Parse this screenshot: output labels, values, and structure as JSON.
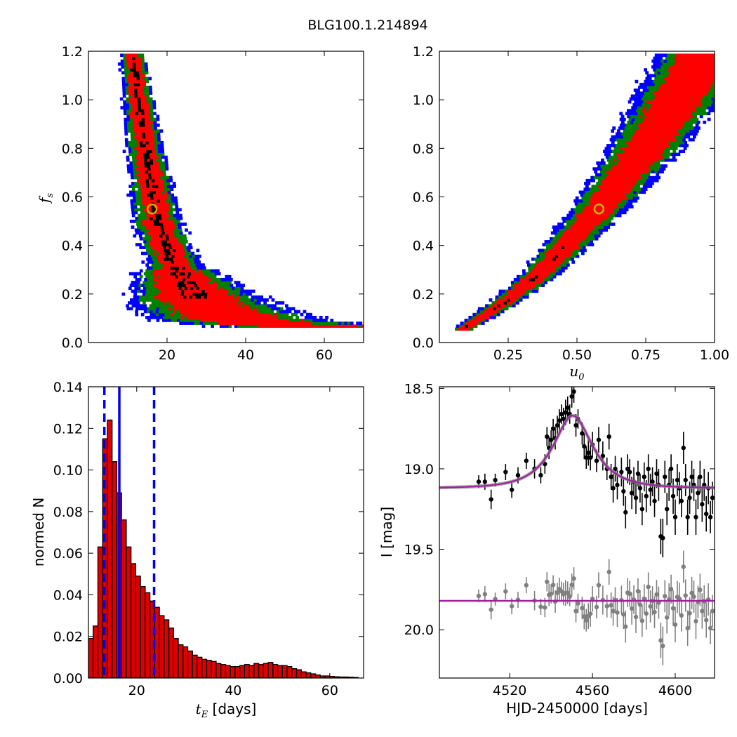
{
  "figure": {
    "title": "BLG100.1.214894"
  },
  "panels": {
    "tl": {
      "ylabel_main": "f",
      "ylabel_sub": "s",
      "xlabel": "",
      "xlim": [
        0,
        70
      ],
      "ylim": [
        0,
        1.2
      ],
      "xticks": [
        {
          "v": 20,
          "label": "20"
        },
        {
          "v": 40,
          "label": "40"
        },
        {
          "v": 60,
          "label": "60"
        }
      ],
      "yticks": [
        {
          "v": 0,
          "label": "0.0"
        },
        {
          "v": 0.2,
          "label": "0.2"
        },
        {
          "v": 0.4,
          "label": "0.4"
        },
        {
          "v": 0.6,
          "label": "0.6"
        },
        {
          "v": 0.8,
          "label": "0.8"
        },
        {
          "v": 1.0,
          "label": "1.0"
        },
        {
          "v": 1.2,
          "label": "1.2"
        }
      ]
    },
    "tr": {
      "xlabel_main": "u",
      "xlabel_sub": "0",
      "ylabel": "",
      "xlim": [
        0,
        1.0
      ],
      "ylim": [
        0,
        1.2
      ],
      "xticks": [
        {
          "v": 0.25,
          "label": "0.25"
        },
        {
          "v": 0.5,
          "label": "0.50"
        },
        {
          "v": 0.75,
          "label": "0.75"
        },
        {
          "v": 1.0,
          "label": "1.00"
        }
      ],
      "yticks": [
        {
          "v": 0,
          "label": "0.0"
        },
        {
          "v": 0.2,
          "label": "0.2"
        },
        {
          "v": 0.4,
          "label": "0.4"
        },
        {
          "v": 0.6,
          "label": "0.6"
        },
        {
          "v": 0.8,
          "label": "0.8"
        },
        {
          "v": 1.0,
          "label": "1.0"
        },
        {
          "v": 1.2,
          "label": "1.2"
        }
      ]
    },
    "bl": {
      "xlabel_main": "t",
      "xlabel_sub": "E",
      "xlabel_rest": " [days]",
      "ylabel": "normed N",
      "xlim": [
        10,
        67
      ],
      "ylim": [
        0,
        0.14
      ],
      "xticks": [
        {
          "v": 20,
          "label": "20"
        },
        {
          "v": 40,
          "label": "40"
        },
        {
          "v": 60,
          "label": "60"
        }
      ],
      "yticks": [
        {
          "v": 0,
          "label": "0.00"
        },
        {
          "v": 0.02,
          "label": "0.02"
        },
        {
          "v": 0.04,
          "label": "0.04"
        },
        {
          "v": 0.06,
          "label": "0.06"
        },
        {
          "v": 0.08,
          "label": "0.08"
        },
        {
          "v": 0.1,
          "label": "0.10"
        },
        {
          "v": 0.12,
          "label": "0.12"
        },
        {
          "v": 0.14,
          "label": "0.14"
        }
      ]
    },
    "br": {
      "xlabel": "HJD-2450000 [days]",
      "ylabel": "I [mag]",
      "xlim": [
        4486,
        4619
      ],
      "ylim": [
        20.3,
        18.49
      ],
      "xticks": [
        {
          "v": 4520,
          "label": "4520"
        },
        {
          "v": 4560,
          "label": "4560"
        },
        {
          "v": 4600,
          "label": "4600"
        }
      ],
      "yticks": [
        {
          "v": 18.5,
          "label": "18.5"
        },
        {
          "v": 19.0,
          "label": "19.0"
        },
        {
          "v": 19.5,
          "label": "19.5"
        },
        {
          "v": 20.0,
          "label": "20.0"
        }
      ]
    }
  },
  "colors": {
    "sigma1": "#ff0000",
    "sigma2": "#008000",
    "sigma3": "#0000ff",
    "core": "#000000",
    "best": "#c8b400",
    "model": "#a020a0",
    "residual": "#808080",
    "hist_fill": "#dd0000",
    "vline": "#0000ee"
  },
  "chart_data": [
    {
      "id": "tl",
      "type": "heatmap",
      "description_series": [
        "1-sigma",
        "2-sigma",
        "3-sigma"
      ],
      "x_param": "t_E",
      "y_param": "f_s",
      "ridge": [
        [
          10.8,
          1.18
        ],
        [
          11.6,
          1.1
        ],
        [
          12.4,
          1.0
        ],
        [
          13.2,
          0.9
        ],
        [
          14.0,
          0.8
        ],
        [
          15.0,
          0.7
        ],
        [
          16.1,
          0.6
        ],
        [
          17.3,
          0.5
        ],
        [
          18.8,
          0.42
        ],
        [
          20.5,
          0.35
        ],
        [
          22.6,
          0.28
        ],
        [
          25.0,
          0.22
        ],
        [
          28.0,
          0.17
        ],
        [
          31.5,
          0.13
        ],
        [
          35.5,
          0.1
        ],
        [
          40.0,
          0.085
        ],
        [
          45.0,
          0.075
        ],
        [
          51.0,
          0.065
        ],
        [
          58.0,
          0.06
        ],
        [
          66.0,
          0.055
        ]
      ],
      "best_fit": {
        "x": 16.2,
        "y": 0.55
      },
      "xlim": [
        0,
        70
      ],
      "ylim": [
        0,
        1.2
      ]
    },
    {
      "id": "tr",
      "type": "heatmap",
      "x_param": "u_0",
      "y_param": "f_s",
      "ridge": [
        [
          0.08,
          0.05
        ],
        [
          0.15,
          0.1
        ],
        [
          0.22,
          0.15
        ],
        [
          0.3,
          0.22
        ],
        [
          0.38,
          0.3
        ],
        [
          0.46,
          0.4
        ],
        [
          0.54,
          0.5
        ],
        [
          0.6,
          0.58
        ],
        [
          0.68,
          0.7
        ],
        [
          0.76,
          0.82
        ],
        [
          0.84,
          0.96
        ],
        [
          0.92,
          1.1
        ],
        [
          0.97,
          1.18
        ]
      ],
      "best_fit": {
        "x": 0.58,
        "y": 0.55
      },
      "xlim": [
        0,
        1.0
      ],
      "ylim": [
        0,
        1.2
      ]
    },
    {
      "id": "bl",
      "type": "bar",
      "bin_width": 0.98,
      "bin_start": 10.0,
      "values": [
        0.019,
        0.025,
        0.063,
        0.115,
        0.124,
        0.104,
        0.089,
        0.076,
        0.063,
        0.055,
        0.049,
        0.044,
        0.041,
        0.037,
        0.034,
        0.03,
        0.028,
        0.024,
        0.019,
        0.016,
        0.015,
        0.013,
        0.011,
        0.01,
        0.009,
        0.0085,
        0.008,
        0.007,
        0.0065,
        0.006,
        0.0055,
        0.0055,
        0.006,
        0.0065,
        0.006,
        0.007,
        0.0065,
        0.007,
        0.0075,
        0.0065,
        0.006,
        0.006,
        0.0055,
        0.0045,
        0.004,
        0.003,
        0.0025,
        0.002,
        0.0015,
        0.001,
        0.001,
        0.0008,
        0.0006,
        0.0005,
        0.0005,
        0.0004,
        0.0003
      ],
      "vlines": [
        {
          "x": 13.3,
          "style": "dashed"
        },
        {
          "x": 16.4,
          "style": "solid"
        },
        {
          "x": 23.6,
          "style": "dashed"
        }
      ],
      "xlim": [
        10,
        67
      ],
      "ylim": [
        0,
        0.14
      ]
    },
    {
      "id": "br",
      "type": "scatter",
      "model": {
        "t0": 4550.5,
        "tE": 16.2,
        "u0": 0.58,
        "fs": 0.55,
        "base_mag": 19.12
      },
      "residual_offset": 19.82,
      "points_obs": [
        [
          4505,
          19.08,
          0.04
        ],
        [
          4508,
          19.08,
          0.05
        ],
        [
          4511,
          19.19,
          0.06
        ],
        [
          4513,
          19.07,
          0.04
        ],
        [
          4518,
          19.02,
          0.05
        ],
        [
          4521,
          19.13,
          0.05
        ],
        [
          4524,
          19.04,
          0.05
        ],
        [
          4528,
          18.95,
          0.05
        ],
        [
          4532,
          19.0,
          0.06
        ],
        [
          4535,
          19.04,
          0.05
        ],
        [
          4537,
          18.97,
          0.06
        ],
        [
          4538,
          18.8,
          0.06
        ],
        [
          4539,
          18.87,
          0.07
        ],
        [
          4540,
          18.82,
          0.06
        ],
        [
          4541,
          18.75,
          0.06
        ],
        [
          4542,
          18.81,
          0.07
        ],
        [
          4543,
          18.73,
          0.06
        ],
        [
          4544,
          18.7,
          0.07
        ],
        [
          4545,
          18.66,
          0.06
        ],
        [
          4546,
          18.69,
          0.07
        ],
        [
          4547,
          18.65,
          0.08
        ],
        [
          4548,
          18.62,
          0.07
        ],
        [
          4549,
          18.66,
          0.06
        ],
        [
          4550,
          18.55,
          0.07
        ],
        [
          4551,
          18.52,
          0.07
        ],
        [
          4552,
          18.73,
          0.07
        ],
        [
          4553,
          18.69,
          0.06
        ],
        [
          4555,
          18.78,
          0.07
        ],
        [
          4556,
          18.86,
          0.08
        ],
        [
          4557,
          18.93,
          0.07
        ],
        [
          4558,
          18.9,
          0.08
        ],
        [
          4559,
          18.93,
          0.08
        ],
        [
          4560,
          18.85,
          0.08
        ],
        [
          4562,
          18.95,
          0.07
        ],
        [
          4563,
          18.82,
          0.08
        ],
        [
          4565,
          18.92,
          0.09
        ],
        [
          4567,
          19.0,
          0.07
        ],
        [
          4568,
          18.8,
          0.08
        ],
        [
          4569,
          19.05,
          0.08
        ],
        [
          4570,
          19.12,
          0.09
        ],
        [
          4571,
          19.0,
          0.08
        ],
        [
          4572,
          19.1,
          0.09
        ],
        [
          4574,
          19.02,
          0.09
        ],
        [
          4575,
          19.14,
          0.09
        ],
        [
          4576,
          19.27,
          0.1
        ],
        [
          4577,
          19.0,
          0.09
        ],
        [
          4578,
          19.02,
          0.08
        ],
        [
          4579,
          19.15,
          0.1
        ],
        [
          4580,
          19.08,
          0.09
        ],
        [
          4581,
          19.18,
          0.1
        ],
        [
          4582,
          19.03,
          0.08
        ],
        [
          4583,
          19.12,
          0.09
        ],
        [
          4584,
          19.25,
          0.1
        ],
        [
          4585,
          19.05,
          0.09
        ],
        [
          4586,
          19.17,
          0.1
        ],
        [
          4587,
          19.0,
          0.09
        ],
        [
          4588,
          19.13,
          0.1
        ],
        [
          4589,
          19.08,
          0.09
        ],
        [
          4590,
          19.2,
          0.1
        ],
        [
          4591,
          19.03,
          0.09
        ],
        [
          4592,
          19.1,
          0.1
        ],
        [
          4593,
          19.42,
          0.11
        ],
        [
          4594,
          19.43,
          0.12
        ],
        [
          4595,
          19.05,
          0.1
        ],
        [
          4596,
          19.25,
          0.1
        ],
        [
          4597,
          19.1,
          0.1
        ],
        [
          4598,
          19.0,
          0.09
        ],
        [
          4599,
          19.17,
          0.11
        ],
        [
          4600,
          19.3,
          0.11
        ],
        [
          4601,
          19.07,
          0.1
        ],
        [
          4602,
          19.12,
          0.1
        ],
        [
          4603,
          19.2,
          0.1
        ],
        [
          4604,
          18.87,
          0.1
        ],
        [
          4605,
          19.07,
          0.1
        ],
        [
          4606,
          19.3,
          0.11
        ],
        [
          4607,
          19.18,
          0.1
        ],
        [
          4608,
          19.05,
          0.1
        ],
        [
          4609,
          19.1,
          0.1
        ],
        [
          4610,
          19.3,
          0.11
        ],
        [
          4611,
          19.15,
          0.1
        ],
        [
          4612,
          19.05,
          0.1
        ],
        [
          4613,
          19.22,
          0.11
        ],
        [
          4614,
          19.1,
          0.1
        ],
        [
          4615,
          19.28,
          0.11
        ],
        [
          4616,
          19.12,
          0.1
        ],
        [
          4617,
          19.3,
          0.1
        ],
        [
          4618,
          19.18,
          0.1
        ]
      ],
      "xlim": [
        4486,
        4619
      ],
      "ylim": [
        20.3,
        18.49
      ]
    }
  ]
}
